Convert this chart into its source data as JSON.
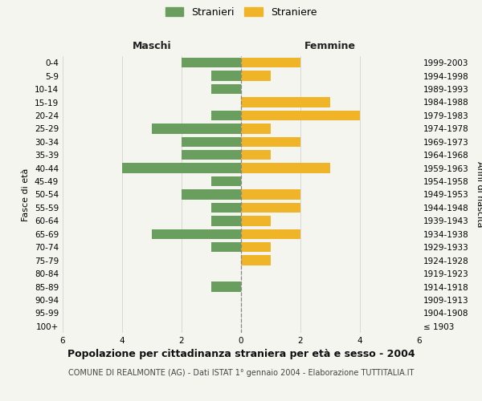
{
  "age_groups": [
    "100+",
    "95-99",
    "90-94",
    "85-89",
    "80-84",
    "75-79",
    "70-74",
    "65-69",
    "60-64",
    "55-59",
    "50-54",
    "45-49",
    "40-44",
    "35-39",
    "30-34",
    "25-29",
    "20-24",
    "15-19",
    "10-14",
    "5-9",
    "0-4"
  ],
  "birth_years": [
    "≤ 1903",
    "1904-1908",
    "1909-1913",
    "1914-1918",
    "1919-1923",
    "1924-1928",
    "1929-1933",
    "1934-1938",
    "1939-1943",
    "1944-1948",
    "1949-1953",
    "1954-1958",
    "1959-1963",
    "1964-1968",
    "1969-1973",
    "1974-1978",
    "1979-1983",
    "1984-1988",
    "1989-1993",
    "1994-1998",
    "1999-2003"
  ],
  "males": [
    0,
    0,
    0,
    1,
    0,
    0,
    1,
    3,
    1,
    1,
    2,
    1,
    4,
    2,
    2,
    3,
    1,
    0,
    1,
    1,
    2
  ],
  "females": [
    0,
    0,
    0,
    0,
    0,
    1,
    1,
    2,
    1,
    2,
    2,
    0,
    3,
    1,
    2,
    1,
    4,
    3,
    0,
    1,
    2
  ],
  "male_color": "#6a9e5f",
  "female_color": "#f0b429",
  "background_color": "#f5f5f0",
  "grid_color": "#cccccc",
  "bar_height": 0.75,
  "xlim": 6,
  "title": "Popolazione per cittadinanza straniera per età e sesso - 2004",
  "subtitle": "COMUNE DI REALMONTE (AG) - Dati ISTAT 1° gennaio 2004 - Elaborazione TUTTITALIA.IT",
  "xlabel_left": "Maschi",
  "xlabel_right": "Femmine",
  "ylabel_left": "Fasce di età",
  "ylabel_right": "Anni di nascita",
  "legend_male": "Stranieri",
  "legend_female": "Straniere",
  "center_line_color": "#888888",
  "title_fontsize": 9,
  "subtitle_fontsize": 7,
  "tick_fontsize": 7.5,
  "axis_label_fontsize": 8,
  "header_fontsize": 9
}
